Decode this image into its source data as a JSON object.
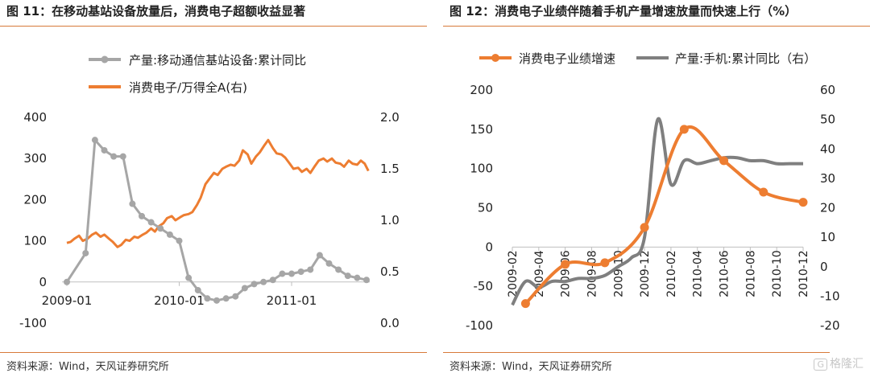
{
  "left_panel": {
    "title": "图 11：在移动基站设备放量后，消费电子超额收益显著",
    "source": "资料来源：Wind，天风证券研究所"
  },
  "right_panel": {
    "title": "图 12：消费电子业绩伴随着手机产量增速放量而快速上行（%）",
    "source": "资料来源：Wind，天风证券研究所"
  },
  "watermark": {
    "icon": "G",
    "text": "格隆汇"
  },
  "colors": {
    "gray": "#a6a6a6",
    "dark_gray": "#7f7f7f",
    "orange": "#ed7d31",
    "rule": "#d77a3a"
  },
  "chart_data": [
    {
      "type": "line",
      "x_unit": "month",
      "x_range": [
        "2009-01",
        "2011-09"
      ],
      "x_tick_labels": [
        "2009-01",
        "2010-01",
        "2011-01"
      ],
      "ylim": [
        -100,
        400
      ],
      "y_ticks": [
        "-100",
        "0",
        "100",
        "200",
        "300",
        "400"
      ],
      "y2lim": [
        0.0,
        2.0
      ],
      "y2_ticks": [
        "0.0",
        "0.5",
        "1.0",
        "1.5",
        "2.0"
      ],
      "legend": "top",
      "series": [
        {
          "name": "产量:移动通信基站设备:累计同比",
          "axis": "left",
          "color": "#a6a6a6",
          "markers": true,
          "points": [
            [
              "2009-01",
              0
            ],
            [
              "2009-03",
              70
            ],
            [
              "2009-04",
              345
            ],
            [
              "2009-05",
              320
            ],
            [
              "2009-06",
              305
            ],
            [
              "2009-07",
              305
            ],
            [
              "2009-08",
              190
            ],
            [
              "2009-09",
              160
            ],
            [
              "2009-10",
              145
            ],
            [
              "2009-11",
              130
            ],
            [
              "2009-12",
              115
            ],
            [
              "2010-01",
              100
            ],
            [
              "2010-02",
              10
            ],
            [
              "2010-03",
              -20
            ],
            [
              "2010-04",
              -40
            ],
            [
              "2010-05",
              -45
            ],
            [
              "2010-06",
              -40
            ],
            [
              "2010-07",
              -35
            ],
            [
              "2010-08",
              -15
            ],
            [
              "2010-09",
              -5
            ],
            [
              "2010-10",
              0
            ],
            [
              "2010-11",
              5
            ],
            [
              "2010-12",
              20
            ],
            [
              "2011-01",
              20
            ],
            [
              "2011-02",
              25
            ],
            [
              "2011-03",
              30
            ],
            [
              "2011-04",
              65
            ],
            [
              "2011-05",
              45
            ],
            [
              "2011-06",
              30
            ],
            [
              "2011-07",
              15
            ],
            [
              "2011-08",
              10
            ],
            [
              "2011-09",
              5
            ]
          ]
        },
        {
          "name": "消费电子/万得全A(右)",
          "axis": "right",
          "color": "#ed7d31",
          "markers": false,
          "points": [
            [
              "2009-01",
              0.78
            ],
            [
              "2009-01.4",
              0.79
            ],
            [
              "2009-01.8",
              0.82
            ],
            [
              "2009-02.3",
              0.85
            ],
            [
              "2009-02.7",
              0.8
            ],
            [
              "2009-03.2",
              0.82
            ],
            [
              "2009-03.7",
              0.86
            ],
            [
              "2009-04.1",
              0.88
            ],
            [
              "2009-04.6",
              0.84
            ],
            [
              "2009-05.0",
              0.86
            ],
            [
              "2009-05.5",
              0.82
            ],
            [
              "2009-05.9",
              0.79
            ],
            [
              "2009-06.4",
              0.74
            ],
            [
              "2009-06.8",
              0.76
            ],
            [
              "2009-07.3",
              0.81
            ],
            [
              "2009-07.7",
              0.8
            ],
            [
              "2009-08.2",
              0.84
            ],
            [
              "2009-08.6",
              0.83
            ],
            [
              "2009-09.1",
              0.86
            ],
            [
              "2009-09.5",
              0.88
            ],
            [
              "2009-10.0",
              0.92
            ],
            [
              "2009-10.4",
              0.89
            ],
            [
              "2009-10.8",
              0.94
            ],
            [
              "2009-11.3",
              0.97
            ],
            [
              "2009-11.7",
              1.02
            ],
            [
              "2009-12.2",
              1.04
            ],
            [
              "2009-12.6",
              1.0
            ],
            [
              "2010-01.1",
              1.03
            ],
            [
              "2010-01.5",
              1.05
            ],
            [
              "2010-02.0",
              1.06
            ],
            [
              "2010-02.4",
              1.08
            ],
            [
              "2010-02.9",
              1.15
            ],
            [
              "2010-03.3",
              1.22
            ],
            [
              "2010-03.8",
              1.35
            ],
            [
              "2010-04.2",
              1.4
            ],
            [
              "2010-04.7",
              1.46
            ],
            [
              "2010-05.1",
              1.44
            ],
            [
              "2010-05.6",
              1.5
            ],
            [
              "2010-06.0",
              1.52
            ],
            [
              "2010-06.5",
              1.54
            ],
            [
              "2010-06.9",
              1.53
            ],
            [
              "2010-07.4",
              1.58
            ],
            [
              "2010-07.8",
              1.68
            ],
            [
              "2010-08.3",
              1.64
            ],
            [
              "2010-08.7",
              1.55
            ],
            [
              "2010-09.2",
              1.62
            ],
            [
              "2010-09.6",
              1.66
            ],
            [
              "2010-10.1",
              1.73
            ],
            [
              "2010-10.5",
              1.78
            ],
            [
              "2010-11.0",
              1.7
            ],
            [
              "2010-11.4",
              1.65
            ],
            [
              "2010-11.9",
              1.64
            ],
            [
              "2010-12.3",
              1.61
            ],
            [
              "2010-12.8",
              1.55
            ],
            [
              "2011-01.2",
              1.5
            ],
            [
              "2011-01.7",
              1.51
            ],
            [
              "2011-02.1",
              1.47
            ],
            [
              "2011-02.6",
              1.5
            ],
            [
              "2011-03.0",
              1.46
            ],
            [
              "2011-03.5",
              1.53
            ],
            [
              "2011-03.9",
              1.58
            ],
            [
              "2011-04.4",
              1.6
            ],
            [
              "2011-04.8",
              1.57
            ],
            [
              "2011-05.3",
              1.6
            ],
            [
              "2011-05.7",
              1.56
            ],
            [
              "2011-06.2",
              1.55
            ],
            [
              "2011-06.6",
              1.52
            ],
            [
              "2011-07.1",
              1.58
            ],
            [
              "2011-07.5",
              1.55
            ],
            [
              "2011-08.0",
              1.54
            ],
            [
              "2011-08.4",
              1.58
            ],
            [
              "2011-08.8",
              1.55
            ],
            [
              "2011-09.2",
              1.48
            ]
          ]
        }
      ]
    },
    {
      "type": "line",
      "x_unit": "month",
      "x_range": [
        "2009-02",
        "2010-12"
      ],
      "x_tick_labels": [
        "2009-02",
        "2009-04",
        "2009-06",
        "2009-08",
        "2009-10",
        "2009-12",
        "2010-02",
        "2010-04",
        "2010-06",
        "2010-08",
        "2010-10",
        "2010-12"
      ],
      "ylim": [
        -100,
        200
      ],
      "y_ticks": [
        "-100",
        "-50",
        "0",
        "50",
        "100",
        "150",
        "200"
      ],
      "y2lim": [
        -20,
        60
      ],
      "y2_ticks": [
        "-20",
        "-10",
        "0",
        "10",
        "20",
        "30",
        "40",
        "50",
        "60"
      ],
      "legend": "top",
      "series": [
        {
          "name": "消费电子业绩增速",
          "axis": "left",
          "color": "#ed7d31",
          "markers": true,
          "points": [
            [
              "2009-03",
              -72
            ],
            [
              "2009-06",
              -22
            ],
            [
              "2009-09",
              -20
            ],
            [
              "2009-12",
              25
            ],
            [
              "2010-03",
              150
            ],
            [
              "2010-06",
              110
            ],
            [
              "2010-09",
              70
            ],
            [
              "2010-12",
              57
            ]
          ]
        },
        {
          "name": "产量:手机:累计同比（右）",
          "axis": "right",
          "color": "#7f7f7f",
          "markers": false,
          "points": [
            [
              "2009-02",
              -13
            ],
            [
              "2009-03",
              -5
            ],
            [
              "2009-04",
              -7
            ],
            [
              "2009-05",
              -5
            ],
            [
              "2009-06",
              -5
            ],
            [
              "2009-07",
              -4
            ],
            [
              "2009-08",
              -4
            ],
            [
              "2009-09",
              -3
            ],
            [
              "2009-10",
              0
            ],
            [
              "2009-11",
              3
            ],
            [
              "2009-12",
              10
            ],
            [
              "2010-01",
              50
            ],
            [
              "2010-02",
              28
            ],
            [
              "2010-03",
              36
            ],
            [
              "2010-04",
              35
            ],
            [
              "2010-05",
              36
            ],
            [
              "2010-06",
              37
            ],
            [
              "2010-07",
              37
            ],
            [
              "2010-08",
              36
            ],
            [
              "2010-09",
              36
            ],
            [
              "2010-10",
              35
            ],
            [
              "2010-11",
              35
            ],
            [
              "2010-12",
              35
            ]
          ]
        }
      ]
    }
  ]
}
